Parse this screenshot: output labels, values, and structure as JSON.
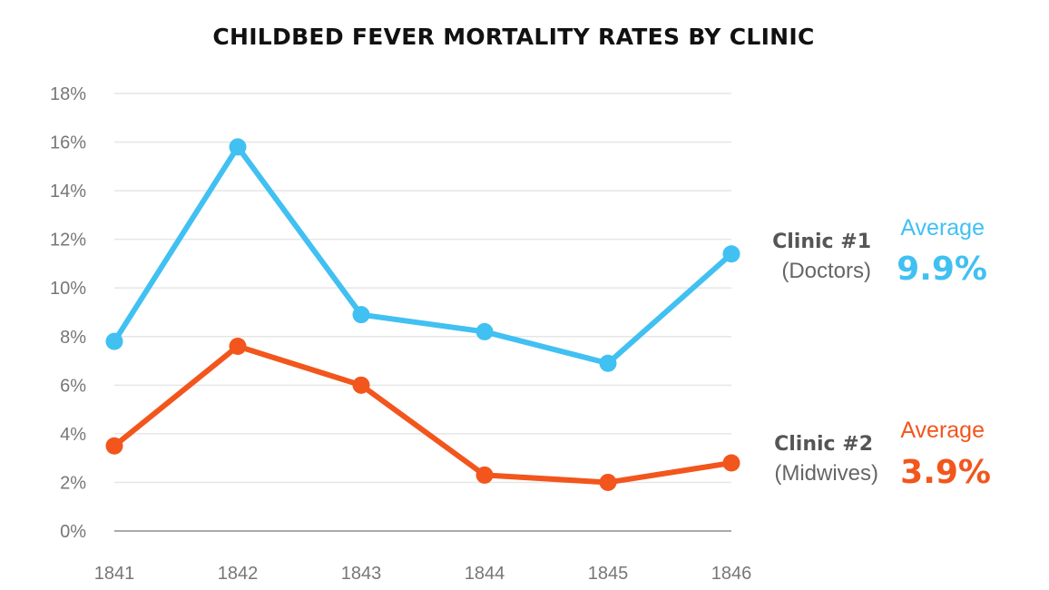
{
  "chart_data": {
    "type": "line",
    "title": "CHILDBED FEVER MORTALITY RATES BY CLINIC",
    "xlabel": "",
    "ylabel": "",
    "x": [
      "1841",
      "1842",
      "1843",
      "1844",
      "1845",
      "1846"
    ],
    "y_ticks": [
      "0%",
      "2%",
      "4%",
      "6%",
      "8%",
      "10%",
      "12%",
      "14%",
      "16%",
      "18%"
    ],
    "ylim": [
      0,
      18
    ],
    "grid": true,
    "series": [
      {
        "name": "Clinic #1",
        "subtitle": "(Doctors)",
        "average_label": "Average",
        "average_value": "9.9%",
        "color": "#41c0f2",
        "values": [
          7.8,
          15.8,
          8.9,
          8.2,
          6.9,
          11.4
        ]
      },
      {
        "name": "Clinic #2",
        "subtitle": "(Midwives)",
        "average_label": "Average",
        "average_value": "3.9%",
        "color": "#f2561d",
        "values": [
          3.5,
          7.6,
          6.0,
          2.3,
          2.0,
          2.8
        ]
      }
    ]
  }
}
